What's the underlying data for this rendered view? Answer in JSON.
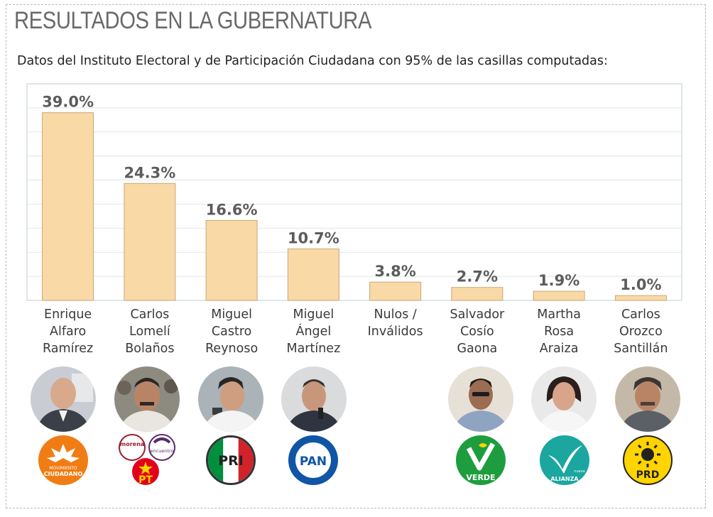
{
  "header": {
    "title": "RESULTADOS EN LA GUBERNATURA",
    "subtitle": "Datos del Instituto Electoral y de Participación Ciudadana con 95% de las casillas computadas:"
  },
  "chart_data": {
    "type": "bar",
    "title": "RESULTADOS EN LA GUBERNATURA",
    "subtitle": "Datos del Instituto Electoral y de Participación Ciudadana con 95% de las casillas computadas:",
    "categories": [
      [
        "Enrique",
        "Alfaro",
        "Ramírez"
      ],
      [
        "Carlos",
        "Lomelí",
        "Bolaños"
      ],
      [
        "Miguel",
        "Castro",
        "Reynoso"
      ],
      [
        "Miguel",
        "Ángel",
        "Martínez"
      ],
      [
        "Nulos /",
        "Inválidos"
      ],
      [
        "Salvador",
        "Cosío",
        "Gaona"
      ],
      [
        "Martha",
        "Rosa",
        "Araiza"
      ],
      [
        "Carlos",
        "Orozco",
        "Santillán"
      ]
    ],
    "values": [
      39.0,
      24.3,
      16.6,
      10.7,
      3.8,
      2.7,
      1.9,
      1.0
    ],
    "value_labels": [
      "39.0%",
      "24.3%",
      "16.6%",
      "10.7%",
      "3.8%",
      "2.7%",
      "1.9%",
      "1.0%"
    ],
    "ylim": [
      0,
      45
    ],
    "grid": true,
    "bar_color": "#f9d9a6",
    "xlabel": "",
    "ylabel": ""
  },
  "parties": [
    {
      "name": "movimiento-ciudadano",
      "label": "CIUDADANO",
      "label_top": "MOVIMIENTO",
      "color": "#f07d14"
    },
    {
      "name": "morena-pes-pt",
      "labels": [
        "morena",
        "encuentro",
        "PT"
      ],
      "colors": [
        "#9b1b30",
        "#5b2a6e",
        "#e2001a"
      ]
    },
    {
      "name": "pri",
      "label": "PRI",
      "colors": [
        "#008f3c",
        "#ffffff",
        "#d2232a"
      ]
    },
    {
      "name": "pan",
      "label": "PAN",
      "color": "#1055a6"
    },
    {
      "name": "pvem",
      "label": "VERDE",
      "color": "#1d9d3d"
    },
    {
      "name": "nueva-alianza",
      "label": "ALIANZA",
      "label_top": "nueva",
      "color": "#1ba6a0"
    },
    {
      "name": "prd",
      "label": "PRD",
      "color": "#ffd400"
    }
  ]
}
